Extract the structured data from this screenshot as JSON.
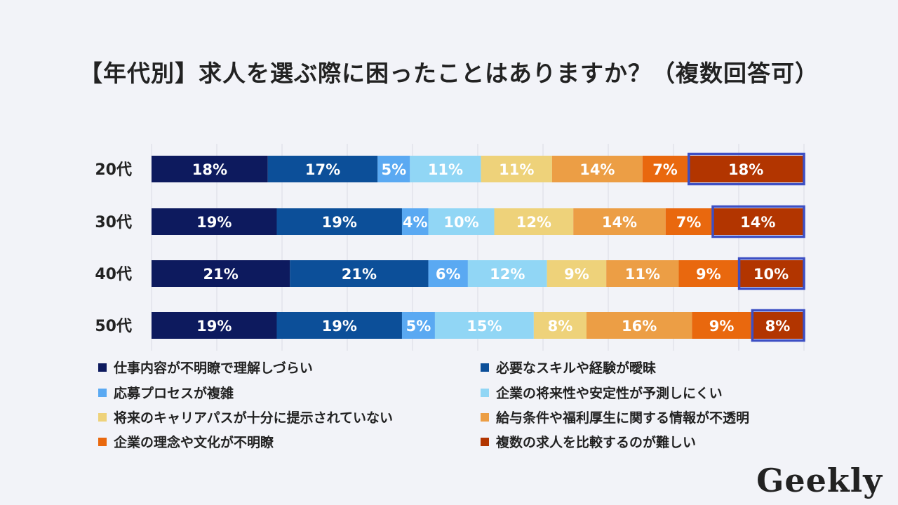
{
  "chart_data": {
    "type": "bar",
    "orientation": "horizontal",
    "stacked": true,
    "title": "【年代別】求人を選ぶ際に困ったことはありますか？（複数回答可）",
    "categories": [
      "20代",
      "30代",
      "40代",
      "50代"
    ],
    "series": [
      {
        "name": "仕事内容が不明瞭で理解しづらい",
        "color": "#0d1a5e",
        "values": [
          18,
          19,
          21,
          19
        ]
      },
      {
        "name": "必要なスキルや経験が曖昧",
        "color": "#0c4f99",
        "values": [
          17,
          19,
          21,
          19
        ]
      },
      {
        "name": "応募プロセスが複雑",
        "color": "#5aa9f2",
        "values": [
          5,
          4,
          6,
          5
        ]
      },
      {
        "name": "企業の将来性や安定性が予測しにくい",
        "color": "#91d6f5",
        "values": [
          11,
          10,
          12,
          15
        ]
      },
      {
        "name": "将来のキャリアパスが十分に提示されていない",
        "color": "#eed27a",
        "values": [
          11,
          12,
          9,
          8
        ]
      },
      {
        "name": "給与条件や福利厚生に関する情報が不透明",
        "color": "#ec9e45",
        "values": [
          14,
          14,
          11,
          16
        ]
      },
      {
        "name": "企業の理念や文化が不明瞭",
        "color": "#e9680e",
        "values": [
          7,
          7,
          9,
          9
        ]
      },
      {
        "name": "複数の求人を比較するのが難しい",
        "color": "#b23500",
        "values": [
          18,
          14,
          10,
          8
        ]
      }
    ],
    "highlighted_series": "複数の求人を比較するのが難しい",
    "highlight_color": "#3d4fc4",
    "value_suffix": "%",
    "label_color": "#ffffff",
    "grid_color": "#d9dbe3",
    "legend_position": "bottom"
  },
  "logo_text": "Geekly"
}
